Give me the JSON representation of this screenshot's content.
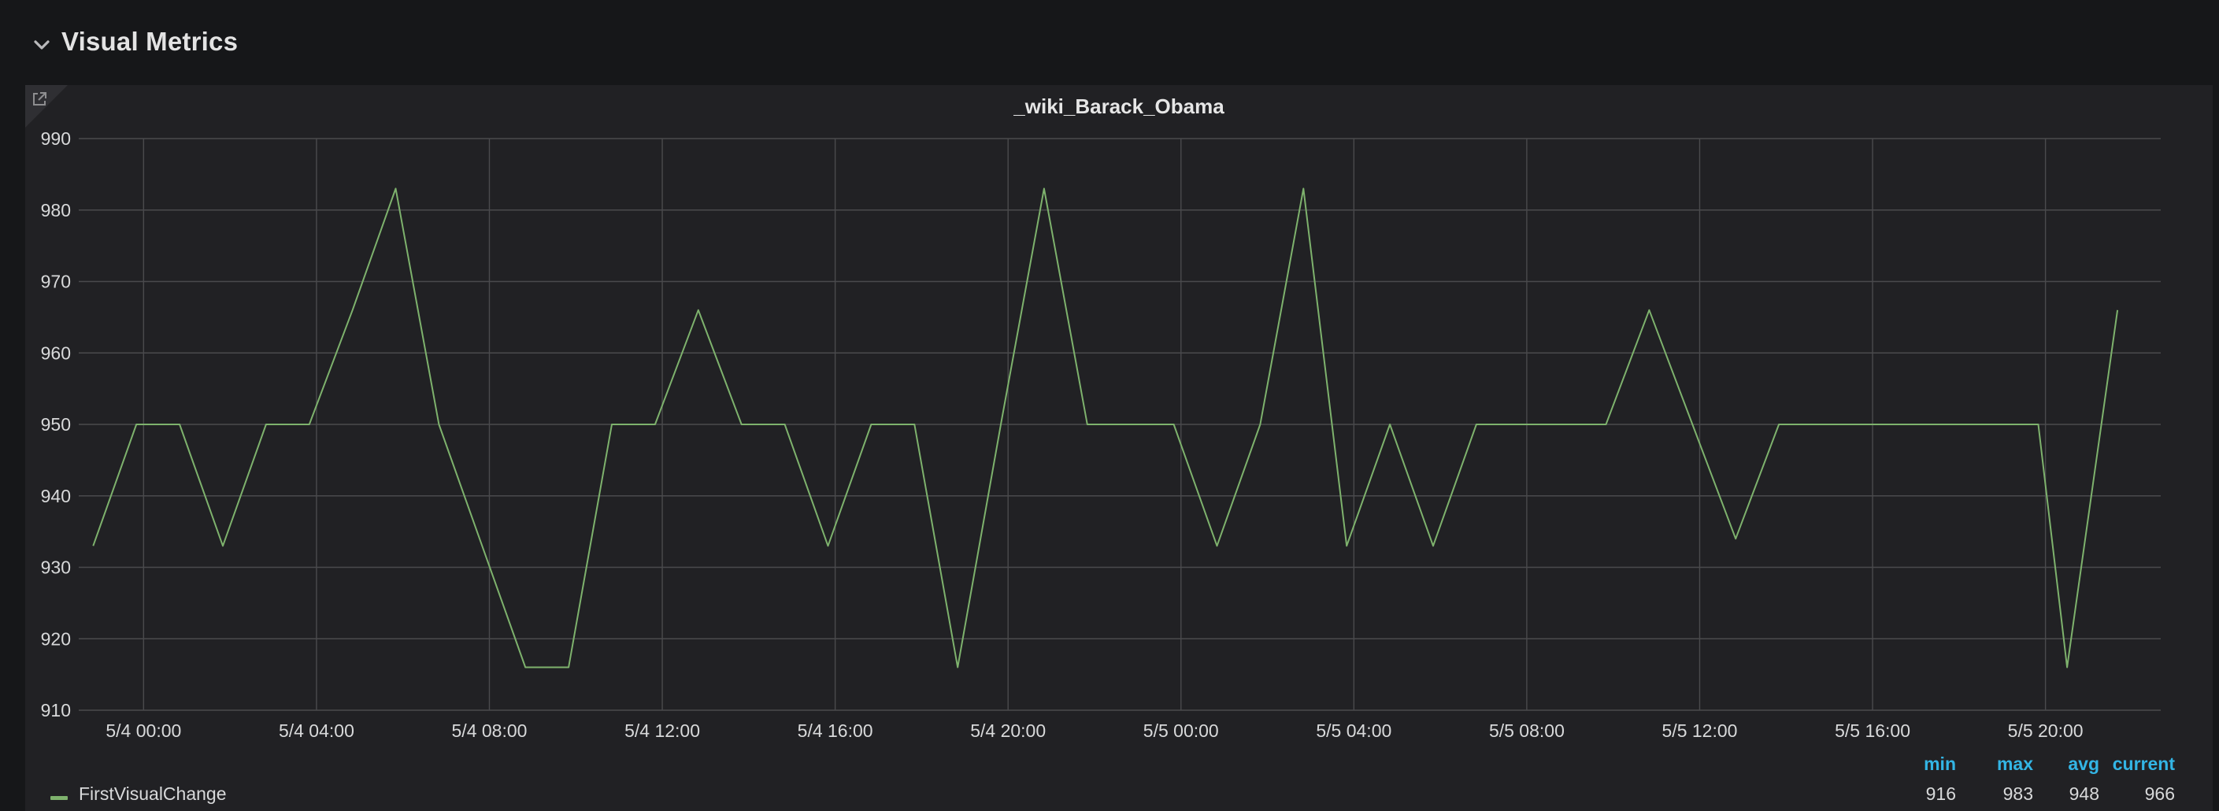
{
  "row": {
    "title": "Visual Metrics",
    "toggle_icon": "chevron-down-icon"
  },
  "panel": {
    "link_icon": "external-link-icon"
  },
  "colors": {
    "background": "#161719",
    "panel": "#212124",
    "series": "#7eb26d",
    "legend_header": "#33b5e5",
    "text": "#d8d9da",
    "grid": "#4a4a4d"
  },
  "chart_data": {
    "type": "line",
    "title": "_wiki_Barack_Obama",
    "xlabel": "",
    "ylabel": "",
    "grid": true,
    "legend_placement": "bottom",
    "xlim": [
      "5/3 22:30",
      "5/5 22:40"
    ],
    "ylim": [
      910,
      990
    ],
    "y_ticks": [
      "990",
      "980",
      "970",
      "960",
      "950",
      "940",
      "930",
      "920",
      "910"
    ],
    "x_ticks": [
      "5/4 00:00",
      "5/4 04:00",
      "5/4 08:00",
      "5/4 12:00",
      "5/4 16:00",
      "5/4 20:00",
      "5/5 00:00",
      "5/5 04:00",
      "5/5 08:00",
      "5/5 12:00",
      "5/5 16:00",
      "5/5 20:00"
    ],
    "series": [
      {
        "name": "FirstVisualChange",
        "color": "#7eb26d",
        "x": [
          "5/3 22:50",
          "5/3 23:50",
          "5/4 00:50",
          "5/4 01:50",
          "5/4 02:50",
          "5/4 03:50",
          "5/4 04:50",
          "5/4 05:50",
          "5/4 06:50",
          "5/4 07:50",
          "5/4 08:50",
          "5/4 09:50",
          "5/4 10:50",
          "5/4 11:50",
          "5/4 12:50",
          "5/4 13:50",
          "5/4 14:50",
          "5/4 15:50",
          "5/4 16:50",
          "5/4 17:50",
          "5/4 18:50",
          "5/4 19:50",
          "5/4 20:50",
          "5/4 21:50",
          "5/4 22:50",
          "5/4 23:50",
          "5/5 00:50",
          "5/5 01:50",
          "5/5 02:50",
          "5/5 03:50",
          "5/5 04:50",
          "5/5 05:50",
          "5/5 06:50",
          "5/5 07:50",
          "5/5 08:50",
          "5/5 09:50",
          "5/5 10:50",
          "5/5 11:50",
          "5/5 12:50",
          "5/5 13:50",
          "5/5 14:50",
          "5/5 15:50",
          "5/5 16:50",
          "5/5 17:50",
          "5/5 18:50",
          "5/5 19:50",
          "5/5 20:30",
          "5/5 21:40"
        ],
        "values": [
          933,
          950,
          950,
          933,
          950,
          950,
          966,
          983,
          950,
          933,
          916,
          916,
          950,
          950,
          966,
          950,
          950,
          933,
          950,
          950,
          916,
          950,
          983,
          950,
          950,
          950,
          933,
          950,
          983,
          933,
          950,
          933,
          950,
          950,
          950,
          950,
          966,
          950,
          934,
          950,
          950,
          950,
          950,
          950,
          950,
          950,
          916,
          966
        ]
      }
    ],
    "legend": {
      "headers": [
        "min",
        "max",
        "avg",
        "current"
      ],
      "rows": [
        {
          "name": "FirstVisualChange",
          "min": "916",
          "max": "983",
          "avg": "948",
          "current": "966"
        }
      ]
    }
  }
}
